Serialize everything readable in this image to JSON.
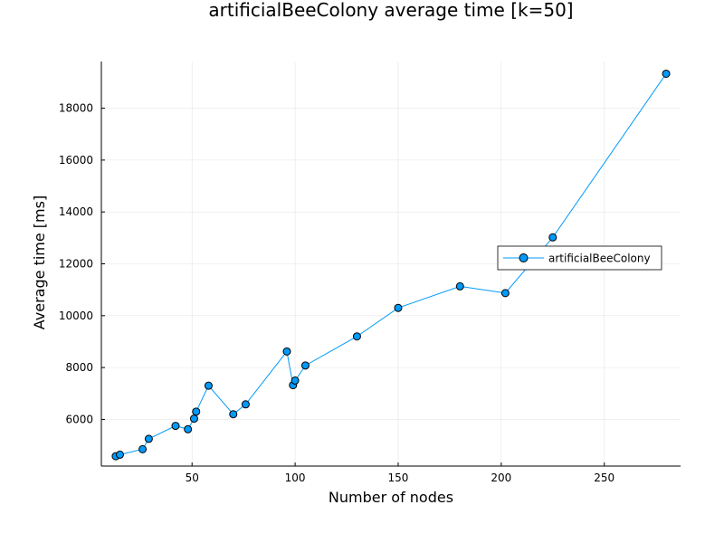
{
  "chart_data": {
    "type": "line",
    "title": "artificialBeeColony average time [k=50]",
    "xlabel": "Number of nodes",
    "ylabel": "Average time [ms]",
    "xlim": [
      6,
      287
    ],
    "ylim": [
      4200,
      19800
    ],
    "xticks": [
      50,
      100,
      150,
      200,
      250
    ],
    "yticks": [
      6000,
      8000,
      10000,
      12000,
      14000,
      16000,
      18000
    ],
    "grid": true,
    "legend_position": "right",
    "series": [
      {
        "name": "artificialBeeColony",
        "color": "#009af9",
        "marker": "circle",
        "points": [
          {
            "x": 13,
            "y": 4580
          },
          {
            "x": 15,
            "y": 4640
          },
          {
            "x": 26,
            "y": 4850
          },
          {
            "x": 29,
            "y": 5250
          },
          {
            "x": 42,
            "y": 5750
          },
          {
            "x": 48,
            "y": 5620
          },
          {
            "x": 51,
            "y": 6030
          },
          {
            "x": 52,
            "y": 6300
          },
          {
            "x": 58,
            "y": 7300
          },
          {
            "x": 70,
            "y": 6200
          },
          {
            "x": 76,
            "y": 6580
          },
          {
            "x": 96,
            "y": 8620
          },
          {
            "x": 99,
            "y": 7320
          },
          {
            "x": 100,
            "y": 7500
          },
          {
            "x": 105,
            "y": 8080
          },
          {
            "x": 130,
            "y": 9200
          },
          {
            "x": 150,
            "y": 10300
          },
          {
            "x": 180,
            "y": 11130
          },
          {
            "x": 202,
            "y": 10870
          },
          {
            "x": 225,
            "y": 13020
          },
          {
            "x": 280,
            "y": 19330
          }
        ]
      }
    ]
  }
}
